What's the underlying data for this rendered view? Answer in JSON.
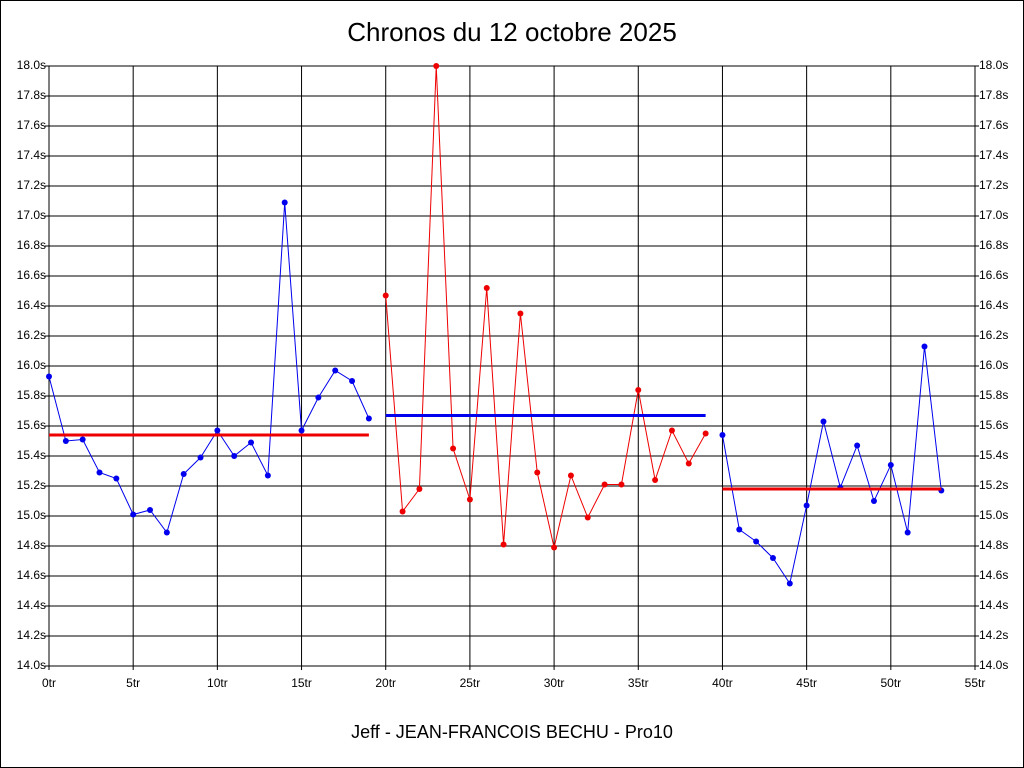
{
  "chart_data": {
    "type": "line",
    "title": "Chronos du 12 octobre 2025",
    "footer": "Jeff - JEAN-FRANCOIS BECHU - Pro10",
    "xlim": [
      0,
      55
    ],
    "ylim": [
      14.0,
      18.0
    ],
    "xticks": [
      {
        "value": 0,
        "label": "0tr"
      },
      {
        "value": 5,
        "label": "5tr"
      },
      {
        "value": 10,
        "label": "10tr"
      },
      {
        "value": 15,
        "label": "15tr"
      },
      {
        "value": 20,
        "label": "20tr"
      },
      {
        "value": 25,
        "label": "25tr"
      },
      {
        "value": 30,
        "label": "30tr"
      },
      {
        "value": 35,
        "label": "35tr"
      },
      {
        "value": 40,
        "label": "40tr"
      },
      {
        "value": 45,
        "label": "45tr"
      },
      {
        "value": 50,
        "label": "50tr"
      },
      {
        "value": 55,
        "label": "55tr"
      }
    ],
    "yticks": [
      {
        "value": 14.0,
        "label": "14.0s"
      },
      {
        "value": 14.2,
        "label": "14.2s"
      },
      {
        "value": 14.4,
        "label": "14.4s"
      },
      {
        "value": 14.6,
        "label": "14.6s"
      },
      {
        "value": 14.8,
        "label": "14.8s"
      },
      {
        "value": 15.0,
        "label": "15.0s"
      },
      {
        "value": 15.2,
        "label": "15.2s"
      },
      {
        "value": 15.4,
        "label": "15.4s"
      },
      {
        "value": 15.6,
        "label": "15.6s"
      },
      {
        "value": 15.8,
        "label": "15.8s"
      },
      {
        "value": 16.0,
        "label": "16.0s"
      },
      {
        "value": 16.2,
        "label": "16.2s"
      },
      {
        "value": 16.4,
        "label": "16.4s"
      },
      {
        "value": 16.6,
        "label": "16.6s"
      },
      {
        "value": 16.8,
        "label": "16.8s"
      },
      {
        "value": 17.0,
        "label": "17.0s"
      },
      {
        "value": 17.2,
        "label": "17.2s"
      },
      {
        "value": 17.4,
        "label": "17.4s"
      },
      {
        "value": 17.6,
        "label": "17.6s"
      },
      {
        "value": 17.8,
        "label": "17.8s"
      },
      {
        "value": 18.0,
        "label": "18.0s"
      }
    ],
    "grid": true,
    "series": [
      {
        "color": "#0000ee",
        "x": [
          0,
          1,
          2,
          3,
          4,
          5,
          6,
          7,
          8,
          9,
          10,
          11,
          12,
          13,
          14,
          15,
          16,
          17,
          18,
          19
        ],
        "values": [
          15.93,
          15.5,
          15.51,
          15.29,
          15.25,
          15.01,
          15.04,
          14.89,
          15.28,
          15.39,
          15.57,
          15.4,
          15.49,
          15.27,
          17.09,
          15.57,
          15.79,
          15.97,
          15.9,
          15.65
        ]
      },
      {
        "color": "#ee0000",
        "x": [
          20,
          21,
          22,
          23,
          24,
          25,
          26,
          27,
          28,
          29,
          30,
          31,
          32,
          33,
          34,
          35,
          36,
          37,
          38,
          39
        ],
        "values": [
          16.47,
          15.03,
          15.18,
          18.0,
          15.45,
          15.11,
          16.52,
          14.81,
          16.35,
          15.29,
          14.79,
          15.27,
          14.99,
          15.21,
          15.21,
          15.84,
          15.24,
          15.57,
          15.35,
          15.55
        ]
      },
      {
        "color": "#0000ee",
        "x": [
          40,
          41,
          42,
          43,
          44,
          45,
          46,
          47,
          48,
          49,
          50,
          51,
          52,
          53
        ],
        "values": [
          15.54,
          14.91,
          14.83,
          14.72,
          14.55,
          15.07,
          15.63,
          15.19,
          15.47,
          15.1,
          15.34,
          14.89,
          16.13,
          15.17
        ]
      }
    ],
    "reference_lines": [
      {
        "x": [
          0,
          19
        ],
        "value": 15.54,
        "color": "#ee0000"
      },
      {
        "x": [
          20,
          39
        ],
        "value": 15.67,
        "color": "#0000ee"
      },
      {
        "x": [
          40,
          53
        ],
        "value": 15.18,
        "color": "#ee0000"
      }
    ]
  }
}
